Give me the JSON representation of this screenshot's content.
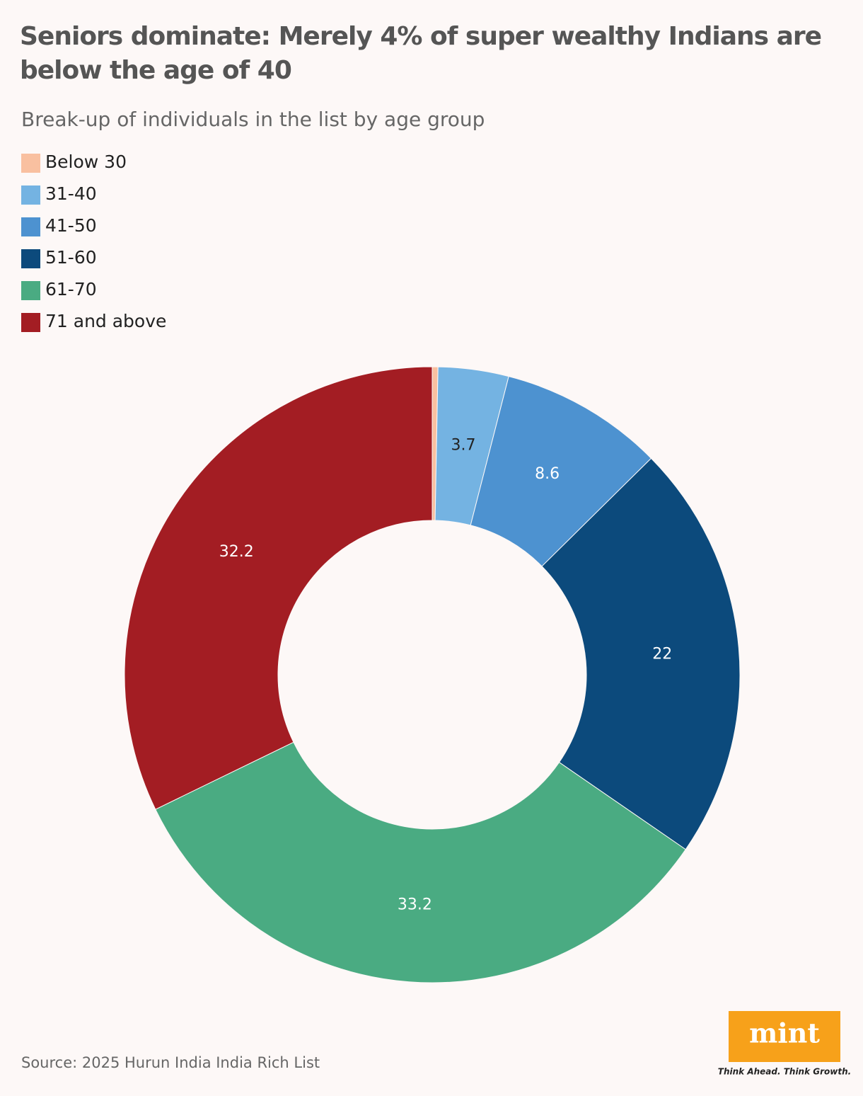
{
  "chart_data": {
    "type": "donut",
    "title": "Seniors dominate: Merely 4% of super wealthy Indians are below the age of 40",
    "subtitle": "Break-up of individuals in the list by age group",
    "categories": [
      "Below 30",
      "31-40",
      "41-50",
      "51-60",
      "61-70",
      "71 and above"
    ],
    "values": [
      0.3,
      3.7,
      8.6,
      22,
      33.2,
      32.2
    ],
    "colors": [
      "#f9c0a0",
      "#74b3e2",
      "#4d92d0",
      "#0c4a7c",
      "#4aab82",
      "#a31d23"
    ],
    "legend": "top-left",
    "source": "Source: 2025 Hurun India India Rich List"
  },
  "logo": {
    "text": "mint",
    "tagline": "Think Ahead. Think Growth."
  }
}
